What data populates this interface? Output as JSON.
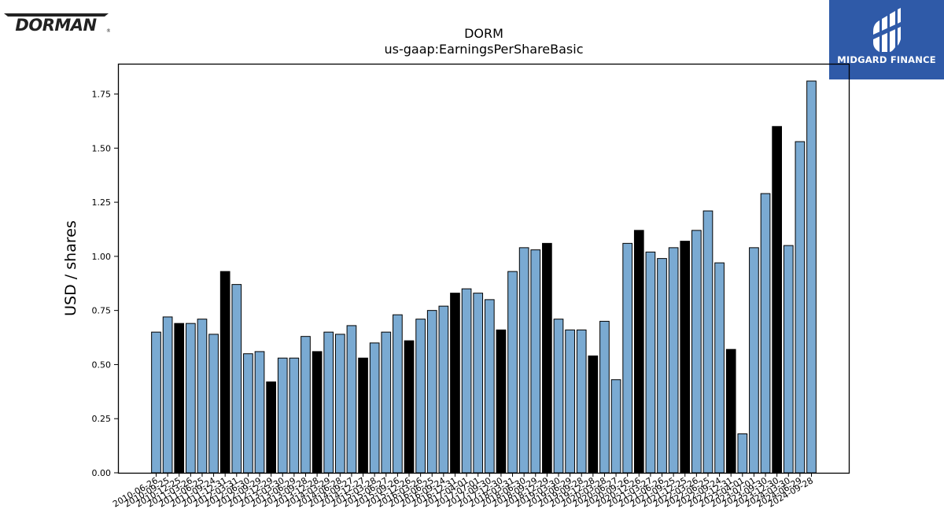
{
  "brand_left": {
    "name": "DORMAN",
    "mark": "®",
    "icon": "dorman-logo"
  },
  "brand_right": {
    "name": "MIDGARD FINANCE",
    "icon": "midgard-finance-logo",
    "bg_color": "#2f5aa8"
  },
  "colors": {
    "bar_normal": "#7aaad2",
    "bar_highlight": "#000000",
    "edge": "#000000"
  },
  "chart_data": {
    "type": "bar",
    "title": "DORM",
    "subtitle": "us-gaap:EarningsPerShareBasic",
    "xlabel": "",
    "ylabel": "USD / shares",
    "ylim": [
      0,
      1.89
    ],
    "yticks": [
      "0.00",
      "0.25",
      "0.50",
      "0.75",
      "1.00",
      "1.25",
      "1.50",
      "1.75"
    ],
    "grid": false,
    "legend": "none",
    "categories": [
      "2010-06-26",
      "2010-09-25",
      "2010-12-25",
      "2011-03-26",
      "2011-06-25",
      "2011-09-24",
      "2011-12-31",
      "2012-03-31",
      "2012-06-30",
      "2012-09-29",
      "2012-12-29",
      "2013-03-30",
      "2013-06-29",
      "2013-09-28",
      "2013-12-28",
      "2014-03-29",
      "2014-06-28",
      "2014-09-27",
      "2014-12-27",
      "2015-03-28",
      "2015-06-27",
      "2015-09-26",
      "2015-12-26",
      "2016-03-26",
      "2016-06-25",
      "2016-09-24",
      "2016-12-31",
      "2017-04-01",
      "2017-07-01",
      "2017-09-30",
      "2017-12-30",
      "2018-03-31",
      "2018-06-30",
      "2018-09-29",
      "2018-12-29",
      "2019-03-30",
      "2019-06-29",
      "2019-09-28",
      "2019-12-28",
      "2020-03-28",
      "2020-06-27",
      "2020-09-26",
      "2020-12-26",
      "2021-03-27",
      "2021-06-26",
      "2021-09-25",
      "2021-12-25",
      "2022-03-26",
      "2022-06-25",
      "2022-09-24",
      "2022-12-31",
      "2023-04-01",
      "2023-07-01",
      "2023-09-30",
      "2023-12-30",
      "2024-03-30",
      "2024-06-29",
      "2024-09-28"
    ],
    "series": [
      {
        "values": [
          0.65,
          0.72,
          0.69,
          0.69,
          0.71,
          0.64,
          0.93,
          0.87,
          0.55,
          0.56,
          0.42,
          0.53,
          0.53,
          0.63,
          0.56,
          0.65,
          0.64,
          0.68,
          0.53,
          0.6,
          0.65,
          0.73,
          0.61,
          0.71,
          0.75,
          0.77,
          0.83,
          0.85,
          0.83,
          0.8,
          0.66,
          0.93,
          1.04,
          1.03,
          1.06,
          0.71,
          0.66,
          0.66,
          0.54,
          0.7,
          0.43,
          1.06,
          1.12,
          1.02,
          0.99,
          1.04,
          1.07,
          1.12,
          1.21,
          0.97,
          0.57,
          0.18,
          1.04,
          1.29,
          1.6,
          1.05,
          1.53,
          1.81
        ],
        "highlight": [
          false,
          false,
          true,
          false,
          false,
          false,
          true,
          false,
          false,
          false,
          true,
          false,
          false,
          false,
          true,
          false,
          false,
          false,
          true,
          false,
          false,
          false,
          true,
          false,
          false,
          false,
          true,
          false,
          false,
          false,
          true,
          false,
          false,
          false,
          true,
          false,
          false,
          false,
          true,
          false,
          false,
          false,
          true,
          false,
          false,
          false,
          true,
          false,
          false,
          false,
          true,
          false,
          false,
          false,
          true,
          false,
          false,
          false
        ]
      }
    ]
  }
}
